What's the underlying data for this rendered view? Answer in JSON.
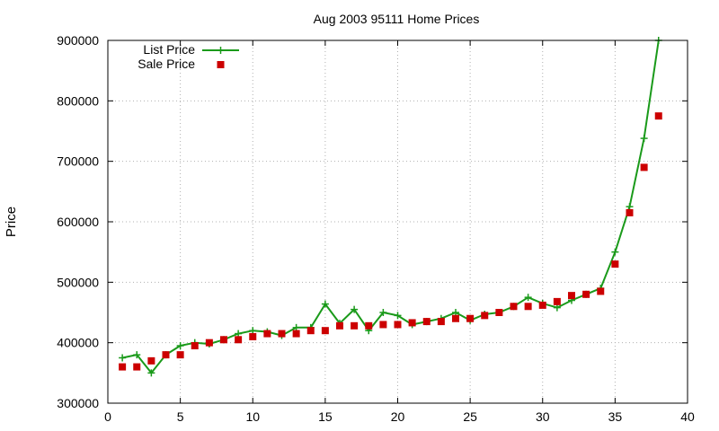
{
  "chart_data": {
    "type": "line",
    "title": "Aug 2003 95111 Home Prices",
    "xlabel": "",
    "ylabel": "Price",
    "xlim": [
      0,
      40
    ],
    "ylim": [
      300000,
      900000
    ],
    "x_ticks": [
      "0",
      "5",
      "10",
      "15",
      "20",
      "25",
      "30",
      "35",
      "40"
    ],
    "y_ticks": [
      "300000",
      "400000",
      "500000",
      "600000",
      "700000",
      "800000",
      "900000"
    ],
    "grid": true,
    "legend_position": "top-left",
    "x": [
      1,
      2,
      3,
      4,
      5,
      6,
      7,
      8,
      9,
      10,
      11,
      12,
      13,
      14,
      15,
      16,
      17,
      18,
      19,
      20,
      21,
      22,
      23,
      24,
      25,
      26,
      27,
      28,
      29,
      30,
      31,
      32,
      33,
      34,
      35,
      36,
      37,
      38
    ],
    "series": [
      {
        "name": "List Price",
        "style": "line-with-plus-markers",
        "color": "#1a9a1a",
        "values": [
          375000,
          380000,
          350000,
          380000,
          395000,
          400000,
          398000,
          405000,
          415000,
          420000,
          418000,
          412000,
          425000,
          425000,
          464000,
          432000,
          455000,
          420000,
          450000,
          445000,
          430000,
          435000,
          440000,
          450000,
          437000,
          447000,
          450000,
          460000,
          475000,
          465000,
          458000,
          470000,
          480000,
          490000,
          550000,
          625000,
          738000,
          900000
        ]
      },
      {
        "name": "Sale Price",
        "style": "square-markers",
        "color": "#cc0000",
        "values": [
          360000,
          360000,
          370000,
          380000,
          380000,
          395000,
          400000,
          405000,
          405000,
          410000,
          415000,
          415000,
          415000,
          420000,
          420000,
          428000,
          428000,
          428000,
          430000,
          430000,
          433000,
          435000,
          435000,
          440000,
          440000,
          445000,
          450000,
          460000,
          460000,
          462000,
          468000,
          478000,
          480000,
          485000,
          530000,
          615000,
          690000,
          775000
        ]
      }
    ]
  }
}
